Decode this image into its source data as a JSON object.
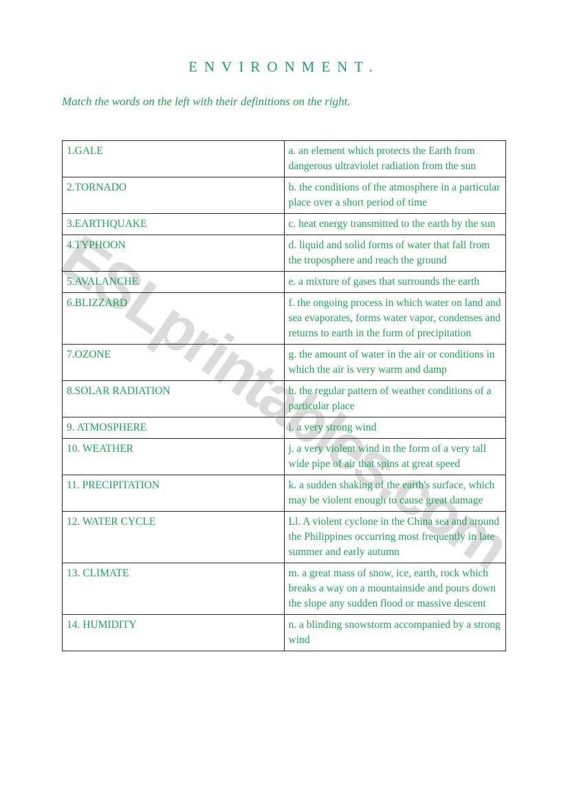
{
  "title_color": "#1fa45a",
  "text_color": "#1fa45a",
  "title": "ENVIRONMENT.",
  "instructions": "Match the words on the left with their definitions on the right.",
  "watermark": "ESLprintables.com",
  "rows": [
    {
      "term": "1.GALE",
      "def": " a. an element which protects the Earth from dangerous ultraviolet radiation from the sun"
    },
    {
      "term": "2.TORNADO",
      "def": "b. the conditions of the atmosphere in a particular place over a short period of time"
    },
    {
      "term": "3.EARTHQUAKE",
      "def": "c. heat energy transmitted to the earth by the sun"
    },
    {
      "term": "4.TYPHOON",
      "def": "d. liquid and solid forms of water that fall from the troposphere and reach the ground"
    },
    {
      "term": "5.AVALANCHE",
      "def": "e. a mixture of gases that surrounds the earth"
    },
    {
      "term": "6.BLIZZARD",
      "def": "f. the ongoing process in which water on land and sea evaporates, forms water vapor, condenses and returns to earth in the form of precipitation"
    },
    {
      "term": "7.OZONE",
      "def": "g. the amount of water in the air or conditions in which the air is very warm and damp"
    },
    {
      "term": "8.SOLAR RADIATION",
      "def": "h. the regular pattern of weather conditions of a particular place"
    },
    {
      "term": "9. ATMOSPHERE",
      "def": "i. a very strong wind"
    },
    {
      "term": "10. WEATHER",
      "def": "j. a very violent wind in the form of a very tall wide pipe of air that spins at great speed"
    },
    {
      "term": "11. PRECIPITATION",
      "def": "k. a sudden shaking of the earth's surface, which may be violent enough to cause great damage"
    },
    {
      "term": "12. WATER CYCLE",
      "def": "Ll. A violent cyclone in the  China sea and around the Philippines occurring most frequently in late summer and early autumn"
    },
    {
      "term": "13. CLIMATE",
      "def": "m. a great mass of snow, ice, earth, rock which breaks a way on a mountainside and pours down the slope any sudden flood or massive descent"
    },
    {
      "term": "14. HUMIDITY",
      "def": "n. a blinding snowstorm accompanied by a strong wind"
    }
  ]
}
